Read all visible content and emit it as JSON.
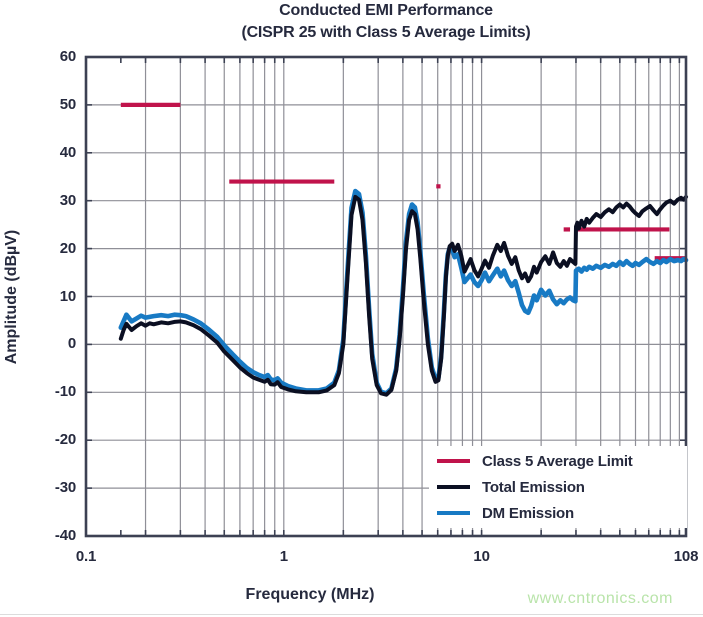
{
  "watermark": "www.cntronics.com",
  "chart_data": {
    "type": "line",
    "title": "Conducted EMI Performance",
    "subtitle": "(CISPR 25 with Class 5 Average Limits)",
    "xlabel": "Frequency (MHz)",
    "ylabel": "Amplitude (dBµV)",
    "x_scale": "log",
    "xlim": [
      0.1,
      108
    ],
    "ylim": [
      -40,
      60
    ],
    "grid": true,
    "legend_position": "lower right",
    "x_tick_values": [
      0.1,
      1,
      10,
      108
    ],
    "x_tick_labels": [
      "0.1",
      "1",
      "10",
      "108"
    ],
    "y_tick_values": [
      60,
      50,
      40,
      30,
      20,
      10,
      0,
      -10,
      -20,
      -30,
      -40
    ],
    "y_tick_labels": [
      "60",
      "50",
      "40",
      "30",
      "20",
      "10",
      "0",
      "-10",
      "-20",
      "-30",
      "-40"
    ],
    "colors": {
      "limit": "#c0134b",
      "total": "#0b0f22",
      "dm": "#187ac4",
      "grid": "#8f8f97",
      "axis": "#3c4153",
      "text": "#262a3e"
    },
    "series": [
      {
        "name": "Class 5 Average Limit",
        "type": "limit-segments",
        "color": "#c0134b",
        "segments": [
          {
            "f1": 0.15,
            "f2": 0.3,
            "db": 50
          },
          {
            "f1": 0.53,
            "f2": 1.8,
            "db": 34
          },
          {
            "f1": 5.9,
            "f2": 6.2,
            "db": 33
          },
          {
            "f1": 26,
            "f2": 28,
            "db": 24
          },
          {
            "f1": 30.5,
            "f2": 89,
            "db": 24
          },
          {
            "f1": 75,
            "f2": 108,
            "db": 18
          }
        ]
      },
      {
        "name": "Total Emission",
        "type": "line",
        "color": "#0b0f22",
        "points": [
          [
            0.15,
            1.2
          ],
          [
            0.155,
            3.0
          ],
          [
            0.16,
            4.3
          ],
          [
            0.17,
            3.0
          ],
          [
            0.18,
            3.8
          ],
          [
            0.19,
            4.4
          ],
          [
            0.2,
            3.9
          ],
          [
            0.21,
            4.4
          ],
          [
            0.22,
            4.2
          ],
          [
            0.24,
            4.6
          ],
          [
            0.26,
            4.4
          ],
          [
            0.28,
            4.7
          ],
          [
            0.3,
            4.8
          ],
          [
            0.32,
            4.6
          ],
          [
            0.35,
            4.0
          ],
          [
            0.38,
            3.2
          ],
          [
            0.42,
            1.8
          ],
          [
            0.46,
            0.4
          ],
          [
            0.5,
            -1.5
          ],
          [
            0.55,
            -3.2
          ],
          [
            0.6,
            -4.8
          ],
          [
            0.65,
            -6.0
          ],
          [
            0.7,
            -6.9
          ],
          [
            0.75,
            -7.4
          ],
          [
            0.8,
            -7.8
          ],
          [
            0.83,
            -7.4
          ],
          [
            0.86,
            -8.3
          ],
          [
            0.9,
            -8.4
          ],
          [
            0.93,
            -7.9
          ],
          [
            0.97,
            -8.9
          ],
          [
            1.05,
            -9.4
          ],
          [
            1.15,
            -9.8
          ],
          [
            1.3,
            -10.0
          ],
          [
            1.5,
            -10.0
          ],
          [
            1.65,
            -9.6
          ],
          [
            1.8,
            -8.5
          ],
          [
            1.9,
            -6.0
          ],
          [
            2.0,
            0.0
          ],
          [
            2.1,
            14
          ],
          [
            2.2,
            27
          ],
          [
            2.3,
            30.8
          ],
          [
            2.4,
            30.2
          ],
          [
            2.5,
            26
          ],
          [
            2.6,
            17
          ],
          [
            2.7,
            6
          ],
          [
            2.8,
            -3
          ],
          [
            2.95,
            -8.5
          ],
          [
            3.1,
            -10.2
          ],
          [
            3.3,
            -10.5
          ],
          [
            3.5,
            -9.5
          ],
          [
            3.7,
            -5.5
          ],
          [
            3.85,
            1
          ],
          [
            4.0,
            10
          ],
          [
            4.15,
            20
          ],
          [
            4.3,
            26
          ],
          [
            4.45,
            27.8
          ],
          [
            4.6,
            27.2
          ],
          [
            4.75,
            24
          ],
          [
            4.9,
            18
          ],
          [
            5.1,
            9
          ],
          [
            5.35,
            0
          ],
          [
            5.6,
            -5.5
          ],
          [
            5.85,
            -7.8
          ],
          [
            6.05,
            -7.5
          ],
          [
            6.25,
            -3
          ],
          [
            6.45,
            6
          ],
          [
            6.6,
            14
          ],
          [
            6.75,
            18.5
          ],
          [
            6.9,
            20.5
          ],
          [
            7.1,
            21
          ],
          [
            7.3,
            19.5
          ],
          [
            7.6,
            20.8
          ],
          [
            7.9,
            18.5
          ],
          [
            8.2,
            15.2
          ],
          [
            8.5,
            16.5
          ],
          [
            8.8,
            17.8
          ],
          [
            9.2,
            15.5
          ],
          [
            9.6,
            14.2
          ],
          [
            10.0,
            15.8
          ],
          [
            10.4,
            17.5
          ],
          [
            10.9,
            16
          ],
          [
            11.4,
            18.5
          ],
          [
            12.0,
            20.8
          ],
          [
            12.5,
            19.5
          ],
          [
            13.0,
            21.2
          ],
          [
            13.6,
            18.5
          ],
          [
            14.2,
            16.8
          ],
          [
            14.8,
            18.2
          ],
          [
            15.4,
            15.5
          ],
          [
            16.0,
            13.8
          ],
          [
            16.6,
            14.8
          ],
          [
            17.2,
            13.2
          ],
          [
            17.8,
            14.2
          ],
          [
            18.4,
            16.2
          ],
          [
            19.0,
            15.0
          ],
          [
            20.0,
            17.2
          ],
          [
            21.0,
            18.4
          ],
          [
            22.0,
            16.8
          ],
          [
            23.0,
            19.2
          ],
          [
            24.0,
            17.0
          ],
          [
            25.0,
            16.2
          ],
          [
            26.0,
            17.4
          ],
          [
            27.0,
            16.4
          ],
          [
            28.0,
            17.8
          ],
          [
            29.0,
            17.2
          ],
          [
            29.8,
            16.8
          ],
          [
            30.0,
            24.6
          ],
          [
            30.5,
            25.4
          ],
          [
            31.0,
            24.2
          ],
          [
            32.0,
            25.8
          ],
          [
            33.0,
            24.6
          ],
          [
            34.0,
            26.2
          ],
          [
            35.0,
            25.4
          ],
          [
            36.5,
            26.4
          ],
          [
            38.0,
            27.2
          ],
          [
            40.0,
            26.6
          ],
          [
            42.0,
            27.6
          ],
          [
            44.0,
            28.2
          ],
          [
            46.0,
            27.6
          ],
          [
            48.0,
            28.6
          ],
          [
            50.0,
            29.2
          ],
          [
            52.0,
            28.6
          ],
          [
            54.0,
            29.4
          ],
          [
            56.0,
            28.8
          ],
          [
            58.0,
            28.0
          ],
          [
            60.0,
            27.4
          ],
          [
            62.5,
            26.8
          ],
          [
            65.0,
            27.8
          ],
          [
            68.0,
            28.4
          ],
          [
            71.0,
            28.9
          ],
          [
            74.0,
            28.0
          ],
          [
            77.0,
            27.2
          ],
          [
            80.0,
            28.2
          ],
          [
            83.0,
            29.0
          ],
          [
            86.0,
            29.6
          ],
          [
            90.0,
            30.0
          ],
          [
            94.0,
            29.4
          ],
          [
            98.0,
            30.2
          ],
          [
            102.0,
            30.6
          ],
          [
            105.0,
            30.2
          ],
          [
            108.0,
            30.8
          ]
        ]
      },
      {
        "name": "DM Emission",
        "type": "line",
        "color": "#187ac4",
        "points": [
          [
            0.15,
            3.5
          ],
          [
            0.16,
            6.2
          ],
          [
            0.17,
            4.8
          ],
          [
            0.18,
            5.4
          ],
          [
            0.19,
            6.0
          ],
          [
            0.2,
            5.6
          ],
          [
            0.22,
            5.9
          ],
          [
            0.24,
            6.1
          ],
          [
            0.26,
            5.9
          ],
          [
            0.28,
            6.2
          ],
          [
            0.3,
            6.1
          ],
          [
            0.32,
            5.9
          ],
          [
            0.35,
            5.2
          ],
          [
            0.38,
            4.4
          ],
          [
            0.42,
            3.0
          ],
          [
            0.46,
            1.6
          ],
          [
            0.5,
            -0.2
          ],
          [
            0.55,
            -2.0
          ],
          [
            0.6,
            -3.6
          ],
          [
            0.65,
            -4.9
          ],
          [
            0.7,
            -5.8
          ],
          [
            0.75,
            -6.4
          ],
          [
            0.8,
            -6.8
          ],
          [
            0.83,
            -6.4
          ],
          [
            0.86,
            -7.3
          ],
          [
            0.9,
            -7.5
          ],
          [
            0.93,
            -7.1
          ],
          [
            0.97,
            -8.0
          ],
          [
            1.05,
            -8.7
          ],
          [
            1.15,
            -9.2
          ],
          [
            1.3,
            -9.6
          ],
          [
            1.5,
            -9.6
          ],
          [
            1.65,
            -9.2
          ],
          [
            1.8,
            -8.0
          ],
          [
            1.9,
            -5.4
          ],
          [
            2.0,
            1.0
          ],
          [
            2.1,
            15.5
          ],
          [
            2.2,
            28.5
          ],
          [
            2.3,
            32.0
          ],
          [
            2.4,
            31.4
          ],
          [
            2.5,
            27.5
          ],
          [
            2.6,
            18.5
          ],
          [
            2.7,
            7.5
          ],
          [
            2.8,
            -2.0
          ],
          [
            2.95,
            -8.0
          ],
          [
            3.1,
            -9.9
          ],
          [
            3.3,
            -10.2
          ],
          [
            3.5,
            -9.2
          ],
          [
            3.7,
            -5.0
          ],
          [
            3.85,
            2.0
          ],
          [
            4.0,
            11.5
          ],
          [
            4.15,
            21.5
          ],
          [
            4.3,
            27.2
          ],
          [
            4.45,
            29.2
          ],
          [
            4.6,
            28.6
          ],
          [
            4.75,
            25.5
          ],
          [
            4.9,
            19.5
          ],
          [
            5.1,
            10.5
          ],
          [
            5.35,
            1.2
          ],
          [
            5.6,
            -4.8
          ],
          [
            5.85,
            -7.2
          ],
          [
            6.05,
            -7.0
          ],
          [
            6.25,
            -2.4
          ],
          [
            6.45,
            6.8
          ],
          [
            6.6,
            14.5
          ],
          [
            6.75,
            18.8
          ],
          [
            6.9,
            20.2
          ],
          [
            7.1,
            20.0
          ],
          [
            7.3,
            18.2
          ],
          [
            7.6,
            18.8
          ],
          [
            7.9,
            16.0
          ],
          [
            8.2,
            13.0
          ],
          [
            8.5,
            13.8
          ],
          [
            8.8,
            14.6
          ],
          [
            9.2,
            13.0
          ],
          [
            9.6,
            12.2
          ],
          [
            10.0,
            13.4
          ],
          [
            10.4,
            15.0
          ],
          [
            10.9,
            13.2
          ],
          [
            11.4,
            14.4
          ],
          [
            12.0,
            15.8
          ],
          [
            12.5,
            14.2
          ],
          [
            13.0,
            15.4
          ],
          [
            13.6,
            13.4
          ],
          [
            14.2,
            12.2
          ],
          [
            14.8,
            13.2
          ],
          [
            15.4,
            10.8
          ],
          [
            16.0,
            8.2
          ],
          [
            16.6,
            7.0
          ],
          [
            17.2,
            6.6
          ],
          [
            17.8,
            8.0
          ],
          [
            18.4,
            10.2
          ],
          [
            19.0,
            9.2
          ],
          [
            20.0,
            11.4
          ],
          [
            21.0,
            10.2
          ],
          [
            22.0,
            11.2
          ],
          [
            23.0,
            9.4
          ],
          [
            24.0,
            8.4
          ],
          [
            25.0,
            9.2
          ],
          [
            26.0,
            8.6
          ],
          [
            27.0,
            9.4
          ],
          [
            28.0,
            9.8
          ],
          [
            29.0,
            9.2
          ],
          [
            29.8,
            9.0
          ],
          [
            30.0,
            15.4
          ],
          [
            31.0,
            15.8
          ],
          [
            32.0,
            15.2
          ],
          [
            33.0,
            16.0
          ],
          [
            34.0,
            15.6
          ],
          [
            35.0,
            16.2
          ],
          [
            36.5,
            15.8
          ],
          [
            38.0,
            16.4
          ],
          [
            40.0,
            16.0
          ],
          [
            42.0,
            16.6
          ],
          [
            44.0,
            16.2
          ],
          [
            46.0,
            16.8
          ],
          [
            48.0,
            16.4
          ],
          [
            50.0,
            17.2
          ],
          [
            52.0,
            16.6
          ],
          [
            54.0,
            17.4
          ],
          [
            56.0,
            16.8
          ],
          [
            58.0,
            16.4
          ],
          [
            60.0,
            17.0
          ],
          [
            62.5,
            16.6
          ],
          [
            65.0,
            17.2
          ],
          [
            68.0,
            17.8
          ],
          [
            71.0,
            17.2
          ],
          [
            74.0,
            16.8
          ],
          [
            77.0,
            17.4
          ],
          [
            80.0,
            17.0
          ],
          [
            83.0,
            17.6
          ],
          [
            86.0,
            17.2
          ],
          [
            90.0,
            17.8
          ],
          [
            94.0,
            17.4
          ],
          [
            98.0,
            17.6
          ],
          [
            102.0,
            17.4
          ],
          [
            105.0,
            17.8
          ],
          [
            108.0,
            17.6
          ]
        ]
      }
    ]
  }
}
